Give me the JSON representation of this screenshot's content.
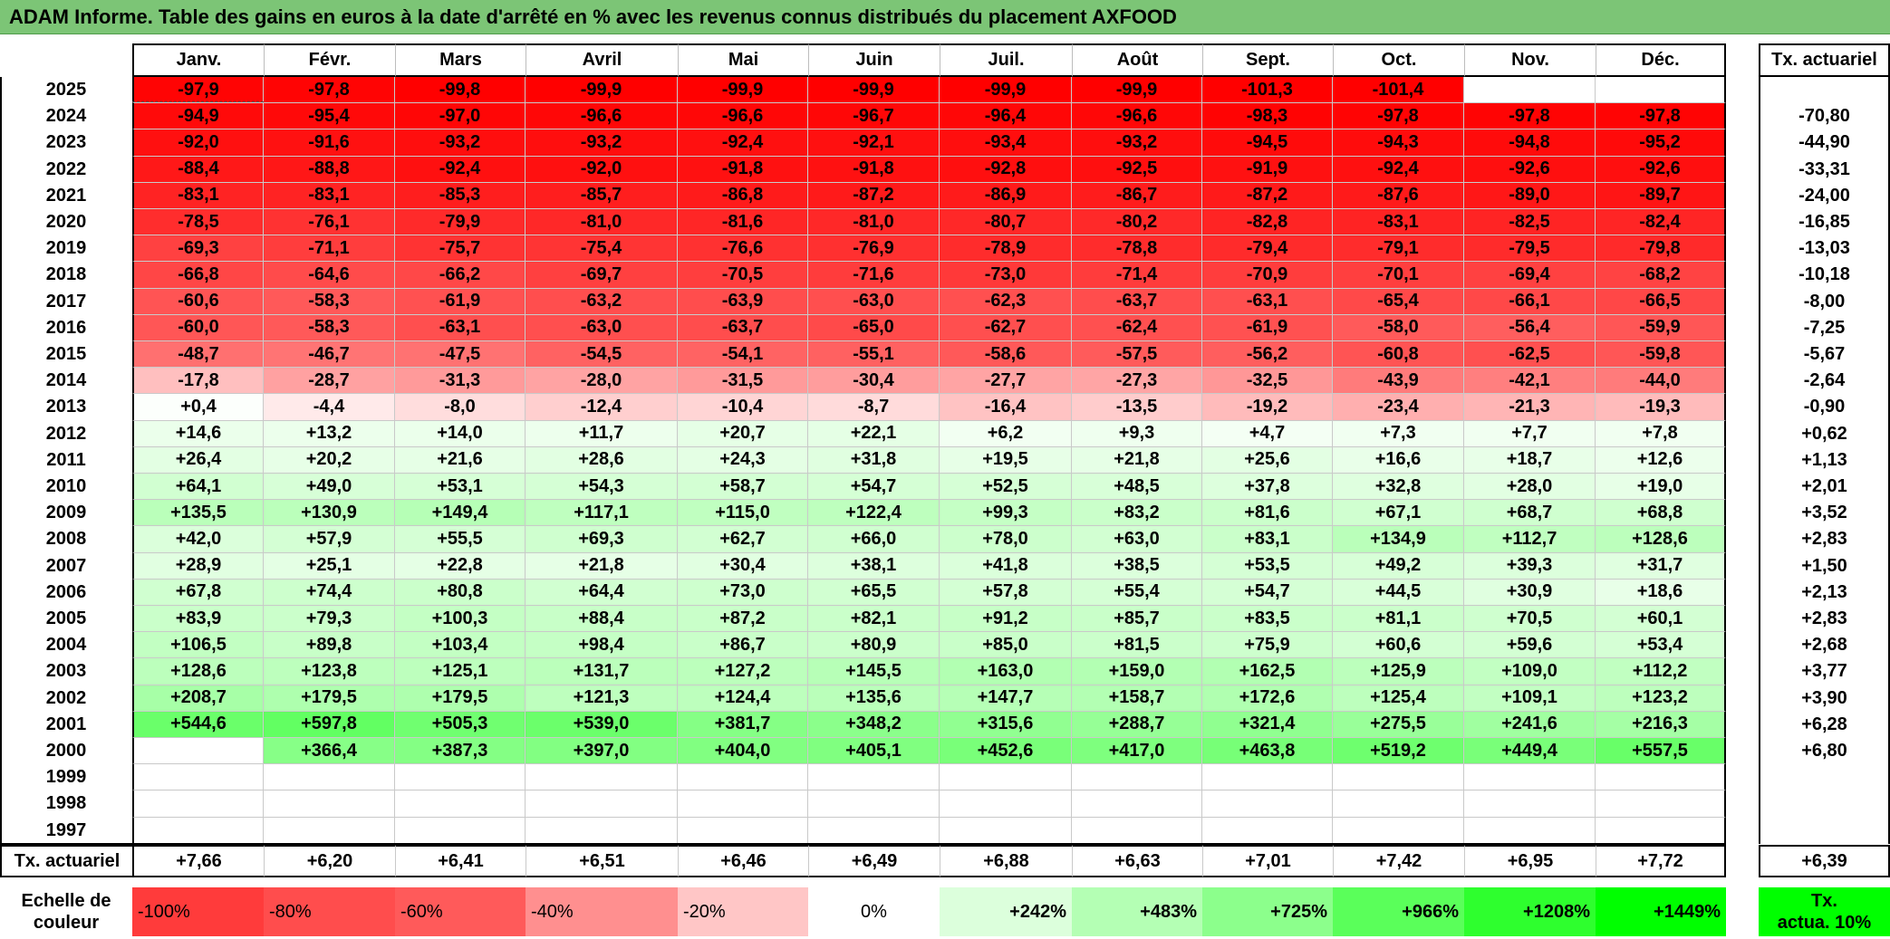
{
  "title": "ADAM Informe. Table des gains en euros à la date d'arrêté en % avec les revenus connus distribués du placement AXFOOD",
  "chart_data": {
    "type": "heatmap",
    "months": [
      "Janv.",
      "Févr.",
      "Mars",
      "Avril",
      "Mai",
      "Juin",
      "Juil.",
      "Août",
      "Sept.",
      "Oct.",
      "Nov.",
      "Déc."
    ],
    "rate_header": "Tx. actuariel",
    "rows": [
      {
        "year": "2025",
        "values": [
          "-97,9",
          "-97,8",
          "-99,8",
          "-99,9",
          "-99,9",
          "-99,9",
          "-99,9",
          "-99,9",
          "-101,3",
          "-101,4",
          "",
          ""
        ],
        "rate": ""
      },
      {
        "year": "2024",
        "values": [
          "-94,9",
          "-95,4",
          "-97,0",
          "-96,6",
          "-96,6",
          "-96,7",
          "-96,4",
          "-96,6",
          "-98,3",
          "-97,8",
          "-97,8",
          "-97,8"
        ],
        "rate": "-70,80"
      },
      {
        "year": "2023",
        "values": [
          "-92,0",
          "-91,6",
          "-93,2",
          "-93,2",
          "-92,4",
          "-92,1",
          "-93,4",
          "-93,2",
          "-94,5",
          "-94,3",
          "-94,8",
          "-95,2"
        ],
        "rate": "-44,90"
      },
      {
        "year": "2022",
        "values": [
          "-88,4",
          "-88,8",
          "-92,4",
          "-92,0",
          "-91,8",
          "-91,8",
          "-92,8",
          "-92,5",
          "-91,9",
          "-92,4",
          "-92,6",
          "-92,6"
        ],
        "rate": "-33,31"
      },
      {
        "year": "2021",
        "values": [
          "-83,1",
          "-83,1",
          "-85,3",
          "-85,7",
          "-86,8",
          "-87,2",
          "-86,9",
          "-86,7",
          "-87,2",
          "-87,6",
          "-89,0",
          "-89,7"
        ],
        "rate": "-24,00"
      },
      {
        "year": "2020",
        "values": [
          "-78,5",
          "-76,1",
          "-79,9",
          "-81,0",
          "-81,6",
          "-81,0",
          "-80,7",
          "-80,2",
          "-82,8",
          "-83,1",
          "-82,5",
          "-82,4"
        ],
        "rate": "-16,85"
      },
      {
        "year": "2019",
        "values": [
          "-69,3",
          "-71,1",
          "-75,7",
          "-75,4",
          "-76,6",
          "-76,9",
          "-78,9",
          "-78,8",
          "-79,4",
          "-79,1",
          "-79,5",
          "-79,8"
        ],
        "rate": "-13,03"
      },
      {
        "year": "2018",
        "values": [
          "-66,8",
          "-64,6",
          "-66,2",
          "-69,7",
          "-70,5",
          "-71,6",
          "-73,0",
          "-71,4",
          "-70,9",
          "-70,1",
          "-69,4",
          "-68,2"
        ],
        "rate": "-10,18"
      },
      {
        "year": "2017",
        "values": [
          "-60,6",
          "-58,3",
          "-61,9",
          "-63,2",
          "-63,9",
          "-63,0",
          "-62,3",
          "-63,7",
          "-63,1",
          "-65,4",
          "-66,1",
          "-66,5"
        ],
        "rate": "-8,00"
      },
      {
        "year": "2016",
        "values": [
          "-60,0",
          "-58,3",
          "-63,1",
          "-63,0",
          "-63,7",
          "-65,0",
          "-62,7",
          "-62,4",
          "-61,9",
          "-58,0",
          "-56,4",
          "-59,9"
        ],
        "rate": "-7,25"
      },
      {
        "year": "2015",
        "values": [
          "-48,7",
          "-46,7",
          "-47,5",
          "-54,5",
          "-54,1",
          "-55,1",
          "-58,6",
          "-57,5",
          "-56,2",
          "-60,8",
          "-62,5",
          "-59,8"
        ],
        "rate": "-5,67"
      },
      {
        "year": "2014",
        "values": [
          "-17,8",
          "-28,7",
          "-31,3",
          "-28,0",
          "-31,5",
          "-30,4",
          "-27,7",
          "-27,3",
          "-32,5",
          "-43,9",
          "-42,1",
          "-44,0"
        ],
        "rate": "-2,64"
      },
      {
        "year": "2013",
        "values": [
          "+0,4",
          "-4,4",
          "-8,0",
          "-12,4",
          "-10,4",
          "-8,7",
          "-16,4",
          "-13,5",
          "-19,2",
          "-23,4",
          "-21,3",
          "-19,3"
        ],
        "rate": "-0,90"
      },
      {
        "year": "2012",
        "values": [
          "+14,6",
          "+13,2",
          "+14,0",
          "+11,7",
          "+20,7",
          "+22,1",
          "+6,2",
          "+9,3",
          "+4,7",
          "+7,3",
          "+7,7",
          "+7,8"
        ],
        "rate": "+0,62"
      },
      {
        "year": "2011",
        "values": [
          "+26,4",
          "+20,2",
          "+21,6",
          "+28,6",
          "+24,3",
          "+31,8",
          "+19,5",
          "+21,8",
          "+25,6",
          "+16,6",
          "+18,7",
          "+12,6"
        ],
        "rate": "+1,13"
      },
      {
        "year": "2010",
        "values": [
          "+64,1",
          "+49,0",
          "+53,1",
          "+54,3",
          "+58,7",
          "+54,7",
          "+52,5",
          "+48,5",
          "+37,8",
          "+32,8",
          "+28,0",
          "+19,0"
        ],
        "rate": "+2,01"
      },
      {
        "year": "2009",
        "values": [
          "+135,5",
          "+130,9",
          "+149,4",
          "+117,1",
          "+115,0",
          "+122,4",
          "+99,3",
          "+83,2",
          "+81,6",
          "+67,1",
          "+68,7",
          "+68,8"
        ],
        "rate": "+3,52"
      },
      {
        "year": "2008",
        "values": [
          "+42,0",
          "+57,9",
          "+55,5",
          "+69,3",
          "+62,7",
          "+66,0",
          "+78,0",
          "+63,0",
          "+83,1",
          "+134,9",
          "+112,7",
          "+128,6"
        ],
        "rate": "+2,83"
      },
      {
        "year": "2007",
        "values": [
          "+28,9",
          "+25,1",
          "+22,8",
          "+21,8",
          "+30,4",
          "+38,1",
          "+41,8",
          "+38,5",
          "+53,5",
          "+49,2",
          "+39,3",
          "+31,7"
        ],
        "rate": "+1,50"
      },
      {
        "year": "2006",
        "values": [
          "+67,8",
          "+74,4",
          "+80,8",
          "+64,4",
          "+73,0",
          "+65,5",
          "+57,8",
          "+55,4",
          "+54,7",
          "+44,5",
          "+30,9",
          "+18,6"
        ],
        "rate": "+2,13"
      },
      {
        "year": "2005",
        "values": [
          "+83,9",
          "+79,3",
          "+100,3",
          "+88,4",
          "+87,2",
          "+82,1",
          "+91,2",
          "+85,7",
          "+83,5",
          "+81,1",
          "+70,5",
          "+60,1"
        ],
        "rate": "+2,83"
      },
      {
        "year": "2004",
        "values": [
          "+106,5",
          "+89,8",
          "+103,4",
          "+98,4",
          "+86,7",
          "+80,9",
          "+85,0",
          "+81,5",
          "+75,9",
          "+60,6",
          "+59,6",
          "+53,4"
        ],
        "rate": "+2,68"
      },
      {
        "year": "2003",
        "values": [
          "+128,6",
          "+123,8",
          "+125,1",
          "+131,7",
          "+127,2",
          "+145,5",
          "+163,0",
          "+159,0",
          "+162,5",
          "+125,9",
          "+109,0",
          "+112,2"
        ],
        "rate": "+3,77"
      },
      {
        "year": "2002",
        "values": [
          "+208,7",
          "+179,5",
          "+179,5",
          "+121,3",
          "+124,4",
          "+135,6",
          "+147,7",
          "+158,7",
          "+172,6",
          "+125,4",
          "+109,1",
          "+123,2"
        ],
        "rate": "+3,90"
      },
      {
        "year": "2001",
        "values": [
          "+544,6",
          "+597,8",
          "+505,3",
          "+539,0",
          "+381,7",
          "+348,2",
          "+315,6",
          "+288,7",
          "+321,4",
          "+275,5",
          "+241,6",
          "+216,3"
        ],
        "rate": "+6,28"
      },
      {
        "year": "2000",
        "values": [
          "",
          "+366,4",
          "+387,3",
          "+397,0",
          "+404,0",
          "+405,1",
          "+452,6",
          "+417,0",
          "+463,8",
          "+519,2",
          "+449,4",
          "+557,5"
        ],
        "rate": "+6,80"
      },
      {
        "year": "1999",
        "values": [
          "",
          "",
          "",
          "",
          "",
          "",
          "",
          "",
          "",
          "",
          "",
          ""
        ],
        "rate": ""
      },
      {
        "year": "1998",
        "values": [
          "",
          "",
          "",
          "",
          "",
          "",
          "",
          "",
          "",
          "",
          "",
          ""
        ],
        "rate": ""
      },
      {
        "year": "1997",
        "values": [
          "",
          "",
          "",
          "",
          "",
          "",
          "",
          "",
          "",
          "",
          "",
          ""
        ],
        "rate": ""
      }
    ],
    "footer": {
      "label": "Tx. actuariel",
      "values": [
        "+7,66",
        "+6,20",
        "+6,41",
        "+6,51",
        "+6,46",
        "+6,49",
        "+6,88",
        "+6,63",
        "+7,01",
        "+7,42",
        "+6,95",
        "+7,72"
      ],
      "rate": "+6,39"
    },
    "legend": {
      "label_line1": "Echelle de",
      "label_line2": "couleur",
      "items": [
        {
          "text": "-100%",
          "color": "#ff3b3b"
        },
        {
          "text": "-80%",
          "color": "#ff4d4d"
        },
        {
          "text": "-60%",
          "color": "#ff5a5a"
        },
        {
          "text": "-40%",
          "color": "#ff8f8f"
        },
        {
          "text": "-20%",
          "color": "#ffc6c6"
        },
        {
          "text": "0%",
          "color": "#ffffff"
        },
        {
          "text": "+242%",
          "color": "#dcffdc"
        },
        {
          "text": "+483%",
          "color": "#b4ffb4"
        },
        {
          "text": "+725%",
          "color": "#8cff8c"
        },
        {
          "text": "+966%",
          "color": "#5aff5a"
        },
        {
          "text": "+1208%",
          "color": "#2eff2e"
        },
        {
          "text": "+1449%",
          "color": "#00ff00"
        }
      ],
      "rate_line1": "Tx.",
      "rate_line2": "actua. 10%",
      "rate_color": "#00ff00"
    },
    "colors": {
      "negative_max": "#ff0000",
      "neutral": "#ffffff",
      "positive_max": "#00ff00",
      "title_bar": "#7cc576"
    }
  }
}
